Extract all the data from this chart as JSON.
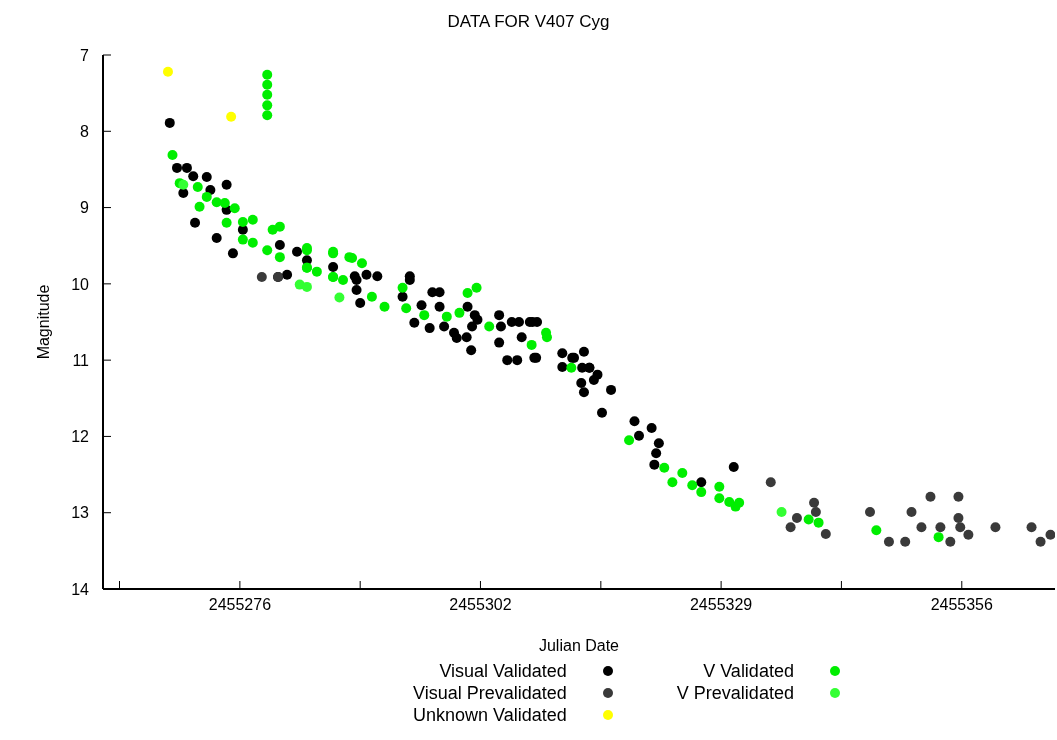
{
  "chart_data": {
    "type": "scatter",
    "title": "DATA FOR V407 Cyg",
    "xlabel": "Julian Date",
    "ylabel": "Magnitude",
    "xlim": [
      2455260.5,
      2455366
    ],
    "ylim": [
      14,
      7
    ],
    "xticks": [
      {
        "value": 2455262.33,
        "label": null
      },
      {
        "value": 2455275.67,
        "label": "2455276"
      },
      {
        "value": 2455289,
        "label": null
      },
      {
        "value": 2455302.33,
        "label": "2455302"
      },
      {
        "value": 2455315.67,
        "label": null
      },
      2455329,
      {
        "value": 2455342.33,
        "label": null
      },
      {
        "value": 2455355.67,
        "label": "2455356"
      }
    ],
    "yticks": [
      7,
      8,
      9,
      10,
      11,
      12,
      13,
      14
    ],
    "grid": false,
    "legend": "bottom",
    "marker": "circle",
    "series": [
      {
        "name": "Visual Validated",
        "color": "#000000",
        "x": [
          2455267.9,
          2455268.7,
          2455269.8,
          2455270.5,
          2455272.0,
          2455274.2,
          2455270.7,
          2455273.1,
          2455274.9,
          2455279.9,
          2455280.9,
          2455280.1,
          2455282.0,
          2455283.1,
          2455286.0,
          2455288.6,
          2455269.4,
          2455272.4,
          2455274.2,
          2455276.0,
          2455288.4,
          2455288.6,
          2455289.0,
          2455289.7,
          2455290.9,
          2455294.5,
          2455293.7,
          2455294.5,
          2455295.0,
          2455295.8,
          2455296.7,
          2455297.0,
          2455297.8,
          2455297.8,
          2455298.3,
          2455299.4,
          2455299.7,
          2455300.8,
          2455300.9,
          2455301.7,
          2455301.4,
          2455301.3,
          2455302.0,
          2455304.4,
          2455304.6,
          2455304.4,
          2455305.8,
          2455306.6,
          2455307.8,
          2455308.6,
          2455305.3,
          2455306.4,
          2455306.9,
          2455308.5,
          2455311.4,
          2455312.7,
          2455313.8,
          2455313.6,
          2455314.4,
          2455313.5,
          2455313.8,
          2455314.9,
          2455308.1,
          2455308.3,
          2455312.5,
          2455311.4,
          2455314.4,
          2455315.3,
          2455316.8,
          2455315.8,
          2455319.4,
          2455321.3,
          2455319.9,
          2455322.1,
          2455321.8,
          2455321.6,
          2455330.4,
          2455326.8
        ],
        "values": [
          7.89,
          8.48,
          8.48,
          8.59,
          8.6,
          8.7,
          9.2,
          9.4,
          9.6,
          9.91,
          9.88,
          9.49,
          9.58,
          9.69,
          9.78,
          9.95,
          8.81,
          8.77,
          9.03,
          9.29,
          9.9,
          10.08,
          10.25,
          9.88,
          9.9,
          9.9,
          10.17,
          9.95,
          10.51,
          10.28,
          10.58,
          10.11,
          10.11,
          10.3,
          10.56,
          10.64,
          10.71,
          10.7,
          10.3,
          10.41,
          10.56,
          10.87,
          10.47,
          10.41,
          10.56,
          10.77,
          10.5,
          10.5,
          10.5,
          10.5,
          11.0,
          11.0,
          10.7,
          10.97,
          10.91,
          10.97,
          10.89,
          11.1,
          11.1,
          11.3,
          11.42,
          11.26,
          10.5,
          10.97,
          10.97,
          11.09,
          11.1,
          11.19,
          11.39,
          11.69,
          11.8,
          11.89,
          11.99,
          12.09,
          12.22,
          12.37,
          12.4,
          12.6
        ]
      },
      {
        "name": "Visual Prevalidated",
        "color": "#3a3a3a",
        "x": [
          2455278.1,
          2455279.9,
          2455334.5,
          2455336.7,
          2455337.4,
          2455339.3,
          2455339.5,
          2455340.6,
          2455345.5,
          2455347.6,
          2455349.4,
          2455350.1,
          2455351.2,
          2455352.2,
          2455353.3,
          2455354.4,
          2455355.3,
          2455355.3,
          2455355.5,
          2455356.4,
          2455359.4,
          2455363.4,
          2455364.4,
          2455365.5
        ],
        "values": [
          9.91,
          9.91,
          12.6,
          13.19,
          13.07,
          12.87,
          12.99,
          13.28,
          12.99,
          13.38,
          13.38,
          12.99,
          13.19,
          12.79,
          13.19,
          13.38,
          12.79,
          13.07,
          13.19,
          13.29,
          13.19,
          13.19,
          13.38,
          13.29
        ]
      },
      {
        "name": "Unknown Validated",
        "color": "#ffff00",
        "x": [
          2455267.7,
          2455274.7
        ],
        "values": [
          7.22,
          7.81
        ]
      },
      {
        "name": "V Validated",
        "color": "#00ee00",
        "x": [
          2455278.7,
          2455278.7,
          2455278.7,
          2455278.7,
          2455278.7,
          2455268.2,
          2455269.0,
          2455271.0,
          2455272.0,
          2455273.1,
          2455274.0,
          2455275.1,
          2455276.0,
          2455277.1,
          2455279.3,
          2455280.1,
          2455274.2,
          2455276.0,
          2455277.1,
          2455278.7,
          2455280.1,
          2455283.1,
          2455283.1,
          2455284.2,
          2455286.0,
          2455287.8,
          2455286.0,
          2455271.2,
          2455283.1,
          2455286.0,
          2455288.1,
          2455289.2,
          2455283.1,
          2455286.0,
          2455287.1,
          2455290.3,
          2455291.7,
          2455293.7,
          2455294.1,
          2455296.1,
          2455298.6,
          2455300.0,
          2455300.9,
          2455301.9,
          2455303.3,
          2455308.0,
          2455309.7,
          2455312.4,
          2455309.6,
          2455318.8,
          2455322.7,
          2455324.7,
          2455323.6,
          2455325.8,
          2455326.8,
          2455328.8,
          2455328.8,
          2455329.9,
          2455330.6,
          2455331.0,
          2455338.7,
          2455339.8,
          2455346.2,
          2455353.1
        ],
        "values": [
          7.26,
          7.39,
          7.52,
          7.66,
          7.79,
          8.31,
          8.68,
          8.73,
          8.86,
          8.93,
          8.94,
          9.01,
          9.19,
          9.16,
          9.29,
          9.25,
          9.2,
          9.42,
          9.46,
          9.56,
          9.65,
          9.56,
          9.79,
          9.84,
          9.6,
          9.65,
          9.91,
          8.99,
          9.53,
          9.58,
          9.66,
          9.73,
          9.79,
          9.91,
          9.95,
          10.17,
          10.3,
          10.05,
          10.32,
          10.41,
          10.43,
          10.38,
          10.12,
          10.05,
          10.56,
          10.8,
          10.7,
          11.1,
          10.64,
          12.05,
          12.41,
          12.48,
          12.6,
          12.64,
          12.73,
          12.66,
          12.81,
          12.86,
          12.92,
          12.87,
          13.09,
          13.13,
          13.23,
          13.32
        ]
      },
      {
        "name": "V Prevalidated",
        "color": "#33ff33",
        "x": [
          2455269.4,
          2455282.3,
          2455283.1,
          2455286.7,
          2455335.7
        ],
        "values": [
          8.7,
          10.01,
          10.04,
          10.18,
          12.99
        ]
      }
    ]
  }
}
